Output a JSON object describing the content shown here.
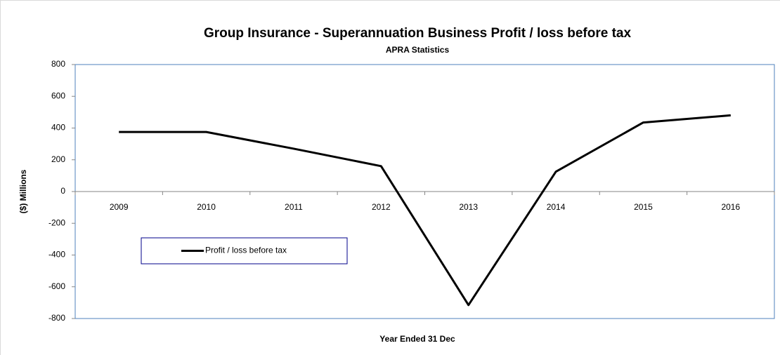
{
  "chart_data": {
    "type": "line",
    "title": "Group Insurance - Superannuation  Business Profit / loss before tax",
    "subtitle": "APRA Statistics",
    "x_label": "Year Ended 31 Dec",
    "y_label": "($) Millions",
    "categories": [
      "2009",
      "2010",
      "2011",
      "2012",
      "2013",
      "2014",
      "2015",
      "2016"
    ],
    "series": [
      {
        "name": "Profit / loss before tax",
        "color": "#000000",
        "values": [
          375,
          375,
          270,
          160,
          -715,
          125,
          435,
          480
        ]
      }
    ],
    "ylim": [
      -800,
      800
    ],
    "yticks": [
      -800,
      -600,
      -400,
      -200,
      0,
      200,
      400,
      600,
      800
    ],
    "grid": false
  }
}
